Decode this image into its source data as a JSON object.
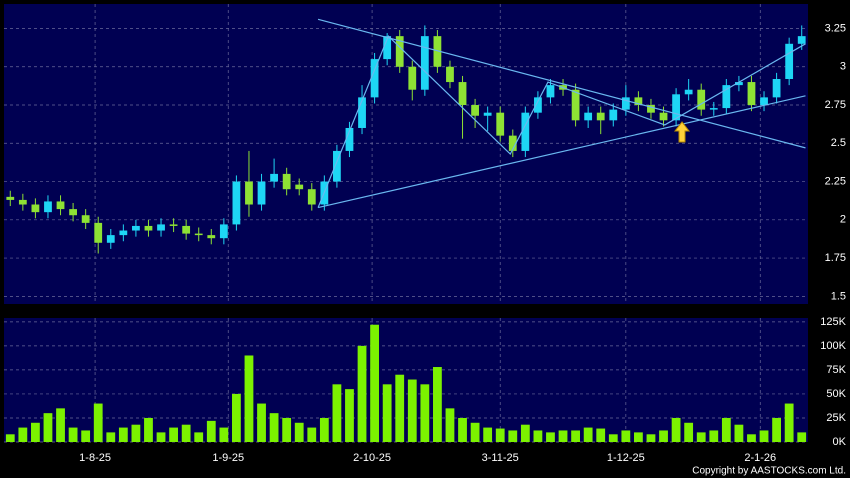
{
  "chart_data": [
    {
      "type": "candlestick",
      "open": [
        2.15,
        2.13,
        2.1,
        2.05,
        2.12,
        2.07,
        2.03,
        1.98,
        1.85,
        1.9,
        1.93,
        1.96,
        1.93,
        1.97,
        1.96,
        1.91,
        1.9,
        1.88,
        1.97,
        2.25,
        2.1,
        2.25,
        2.3,
        2.23,
        2.2,
        2.1,
        2.25,
        2.45,
        2.6,
        2.8,
        3.05,
        3.2,
        3.0,
        2.85,
        3.2,
        3.0,
        2.9,
        2.75,
        2.68,
        2.7,
        2.55,
        2.45,
        2.7,
        2.8,
        2.88,
        2.85,
        2.65,
        2.7,
        2.65,
        2.72,
        2.8,
        2.75,
        2.7,
        2.65,
        2.82,
        2.85,
        2.72,
        2.73,
        2.88,
        2.9,
        2.75,
        2.8,
        2.92,
        3.15
      ],
      "high": [
        2.19,
        2.17,
        2.14,
        2.16,
        2.16,
        2.11,
        2.07,
        2.02,
        1.94,
        1.97,
        2.0,
        2.0,
        2.01,
        2.01,
        2.0,
        1.95,
        1.94,
        2.01,
        2.29,
        2.45,
        2.3,
        2.4,
        2.34,
        2.27,
        2.24,
        2.29,
        2.49,
        2.64,
        2.88,
        3.09,
        3.22,
        3.24,
        3.04,
        3.27,
        3.24,
        3.04,
        2.94,
        2.79,
        2.74,
        2.74,
        2.59,
        2.74,
        2.84,
        2.92,
        2.92,
        2.89,
        2.74,
        2.74,
        2.76,
        2.88,
        2.84,
        2.79,
        2.74,
        2.86,
        2.92,
        2.89,
        2.77,
        2.92,
        2.94,
        2.94,
        2.84,
        2.96,
        3.19,
        3.27
      ],
      "low": [
        2.09,
        2.06,
        2.01,
        2.01,
        2.03,
        1.99,
        1.94,
        1.78,
        1.81,
        1.86,
        1.89,
        1.89,
        1.89,
        1.92,
        1.87,
        1.86,
        1.84,
        1.84,
        1.93,
        2.02,
        2.06,
        2.21,
        2.16,
        2.16,
        2.06,
        2.06,
        2.21,
        2.41,
        2.56,
        2.76,
        3.01,
        2.96,
        2.78,
        2.81,
        2.96,
        2.86,
        2.53,
        2.6,
        2.58,
        2.51,
        2.41,
        2.41,
        2.66,
        2.76,
        2.81,
        2.61,
        2.6,
        2.56,
        2.61,
        2.68,
        2.71,
        2.66,
        2.61,
        2.61,
        2.78,
        2.68,
        2.68,
        2.69,
        2.84,
        2.71,
        2.71,
        2.76,
        2.88,
        3.11
      ],
      "close": [
        2.13,
        2.1,
        2.05,
        2.12,
        2.07,
        2.03,
        1.98,
        1.85,
        1.9,
        1.93,
        1.96,
        1.93,
        1.97,
        1.96,
        1.91,
        1.9,
        1.88,
        1.97,
        2.25,
        2.1,
        2.25,
        2.3,
        2.2,
        2.2,
        2.1,
        2.25,
        2.45,
        2.6,
        2.8,
        3.05,
        3.2,
        3.0,
        2.85,
        3.2,
        3.0,
        2.9,
        2.75,
        2.68,
        2.7,
        2.55,
        2.45,
        2.7,
        2.8,
        2.88,
        2.85,
        2.65,
        2.7,
        2.65,
        2.72,
        2.8,
        2.75,
        2.7,
        2.65,
        2.82,
        2.85,
        2.72,
        2.73,
        2.88,
        2.9,
        2.75,
        2.8,
        2.92,
        3.15,
        3.2
      ],
      "up_color": "#1ed6f5",
      "down_color": "#8ee234",
      "xlim": [
        -0.5,
        63.5
      ],
      "ylim": [
        1.45,
        3.41
      ],
      "yticks": [
        1.5,
        1.75,
        2,
        2.25,
        2.5,
        2.75,
        3,
        3.25
      ],
      "grid": true,
      "trendlines": {
        "color": "#6ab8f0",
        "lines": [
          {
            "x": [
              24.5,
              63.3
            ],
            "y": [
              2.08,
              2.81
            ]
          },
          {
            "x": [
              24.5,
              63.3
            ],
            "y": [
              3.31,
              2.47
            ]
          },
          {
            "x": [
              24.5,
              30.1,
              39.8,
              42.8,
              52.1,
              63.3
            ],
            "y": [
              2.08,
              3.2,
              2.43,
              2.9,
              2.62,
              3.15
            ]
          }
        ]
      }
    },
    {
      "type": "bar",
      "values": [
        8000,
        15000,
        20000,
        30000,
        35000,
        15000,
        12000,
        40000,
        10000,
        15000,
        18000,
        25000,
        10000,
        15000,
        18000,
        10000,
        22000,
        15000,
        50000,
        90000,
        40000,
        30000,
        25000,
        20000,
        15000,
        25000,
        60000,
        55000,
        100000,
        122000,
        60000,
        70000,
        65000,
        60000,
        78000,
        35000,
        25000,
        20000,
        15000,
        14000,
        12000,
        18000,
        12000,
        10000,
        12000,
        12000,
        15000,
        14000,
        8000,
        12000,
        10000,
        8000,
        12000,
        25000,
        20000,
        10000,
        12000,
        25000,
        18000,
        8000,
        12000,
        25000,
        40000,
        10000
      ],
      "color": "#7cf200",
      "xlim": [
        -0.5,
        63.5
      ],
      "xticks": [
        {
          "value": 6.75,
          "label": "1-8-25"
        },
        {
          "value": 17.35,
          "label": "1-9-25"
        },
        {
          "value": 28.8,
          "label": "2-10-25"
        },
        {
          "value": 39.0,
          "label": "3-11-25"
        },
        {
          "value": 49.0,
          "label": "1-12-25"
        },
        {
          "value": 59.7,
          "label": "2-1-26"
        }
      ],
      "ylim": [
        0,
        129000
      ],
      "yticks": [
        {
          "value": 0,
          "label": "0K"
        },
        {
          "value": 25000,
          "label": "25K"
        },
        {
          "value": 50000,
          "label": "50K"
        },
        {
          "value": 75000,
          "label": "75K"
        },
        {
          "value": 100000,
          "label": "100K"
        },
        {
          "value": 125000,
          "label": "125K"
        }
      ],
      "grid": true
    }
  ],
  "copyright": "Copyright by AASTOCKS.com Ltd."
}
